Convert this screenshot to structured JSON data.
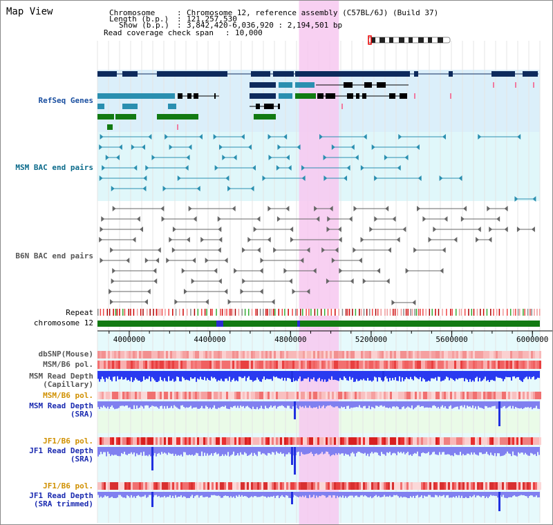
{
  "title": "Map View",
  "info": {
    "chromosome_key": "Chromosome",
    "chromosome_value": "Chromosome 12, reference assembly (C57BL/6J) (Build 37)",
    "length_key": "Length (b.p.)",
    "length_value": "121,257,530",
    "show_key": "Show (b.p.)",
    "show_value": "3,842,420-6,036,920 : 2,194,501 bp",
    "span_key": "Read coverage check span",
    "span_value": "10,000",
    "sep": ":"
  },
  "tracks": {
    "refseq": "RefSeq Genes",
    "msm_bac": "MSM BAC end pairs",
    "b6n_bac": "B6N BAC end pairs",
    "repeat": "Repeat",
    "chromosome": "chromosome 12",
    "dbsnp": "dbSNP(Mouse)",
    "msm_b6_pol_1": "MSM/B6 pol.",
    "msm_depth_cap_1": "MSM Read Depth",
    "msm_depth_cap_2": "(Capillary)",
    "msm_b6_pol_2": "MSM/B6 pol.",
    "msm_depth_sra_1": "MSM Read Depth",
    "msm_depth_sra_2": "(SRA)",
    "jf1_b6_pol_1": "JF1/B6 pol.",
    "jf1_depth_sra_1": "JF1 Read Depth",
    "jf1_depth_sra_2": "(SRA)",
    "jf1_b6_pol_2": "JF1/B6 pol.",
    "jf1_depth_trim_1": "JF1 Read Depth",
    "jf1_depth_trim_2": "(SRA trimmed)"
  },
  "axis": {
    "ticks": [
      "4000000",
      "4400000",
      "4800000",
      "5200000",
      "5600000",
      "6000000"
    ],
    "range_bp": [
      3842420,
      6036920
    ]
  },
  "highlight_bp": [
    4842000,
    5040000
  ],
  "colors": {
    "refseq_label": "#1a4fa0",
    "msm_label": "#0a6a8a",
    "b6n_label": "#555555",
    "pol_label": "#d09000",
    "depth_label": "#1a2ab0",
    "highlight": "#f7c8f0",
    "refseq_bg": "#dbeffa",
    "msm_bg": "#e0f7fa",
    "navy": "#0d2a5c",
    "teal": "#2a8fb0",
    "green": "#127a12",
    "chrom_green": "#127a12"
  }
}
